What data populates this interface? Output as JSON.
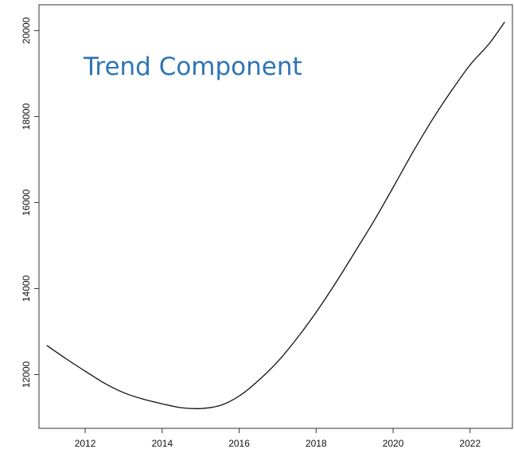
{
  "colors": {
    "title": "#2e75b6",
    "line": "#111111",
    "axis": "#333333"
  },
  "chart_data": {
    "type": "line",
    "annotation": "Trend Component",
    "title": "",
    "xlabel": "",
    "ylabel": "",
    "xlim": [
      2010.8,
      2023.1
    ],
    "ylim": [
      10750,
      20600
    ],
    "x_ticks": [
      2012,
      2014,
      2016,
      2018,
      2020,
      2022
    ],
    "y_ticks": [
      12000,
      14000,
      16000,
      18000,
      20000
    ],
    "x_tick_labels": [
      "2012",
      "2014",
      "2016",
      "2018",
      "2020",
      "2022"
    ],
    "y_tick_labels": [
      "12000",
      "14000",
      "16000",
      "18000",
      "20000"
    ],
    "grid": false,
    "legend": "none",
    "series": [
      {
        "x": [
          2011.0,
          2011.5,
          2012.0,
          2012.5,
          2013.0,
          2013.5,
          2014.0,
          2014.5,
          2015.0,
          2015.5,
          2016.0,
          2016.5,
          2017.0,
          2017.5,
          2018.0,
          2018.5,
          2019.0,
          2019.5,
          2020.0,
          2020.5,
          2021.0,
          2021.5,
          2022.0,
          2022.5,
          2022.9
        ],
        "values": [
          12680,
          12370,
          12080,
          11800,
          11580,
          11430,
          11320,
          11230,
          11210,
          11280,
          11500,
          11860,
          12300,
          12840,
          13450,
          14120,
          14840,
          15570,
          16350,
          17150,
          17900,
          18580,
          19200,
          19700,
          20200
        ]
      }
    ]
  }
}
